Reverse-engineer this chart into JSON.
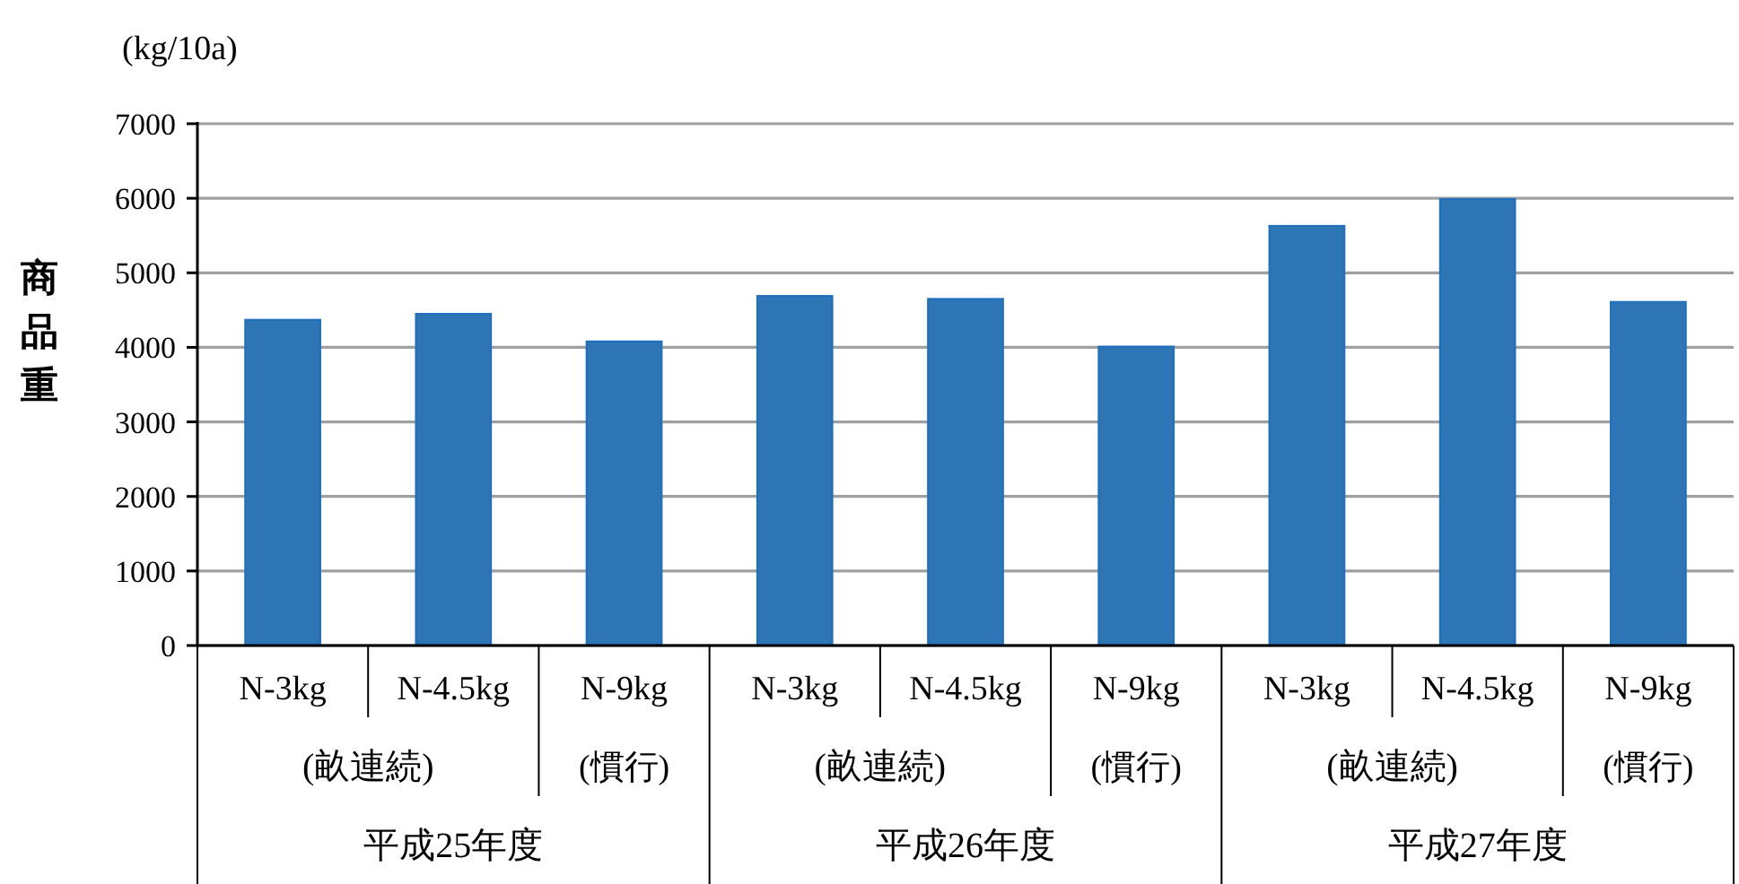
{
  "chart_data": {
    "type": "bar",
    "ylabel": "商品重",
    "categories": [
      "N-3kg",
      "N-4.5kg",
      "N-9kg",
      "N-3kg",
      "N-4.5kg",
      "N-9kg",
      "N-3kg",
      "N-4.5kg",
      "N-9kg"
    ],
    "values": [
      4370,
      4450,
      4080,
      4690,
      4650,
      4010,
      5630,
      5990,
      4610
    ],
    "color": "#2e75b6",
    "ylim": [
      0,
      7000
    ],
    "yticks": [
      0,
      1000,
      2000,
      3000,
      4000,
      5000,
      6000,
      7000
    ],
    "grid": "y",
    "annotations": [
      "(kg/10a)",
      "(畝連続)",
      "(慣行)",
      "(畝連続)",
      "(慣行)",
      "(畝連続)",
      "(慣行)",
      "平成25年度",
      "平成26年度",
      "平成27年度"
    ]
  }
}
